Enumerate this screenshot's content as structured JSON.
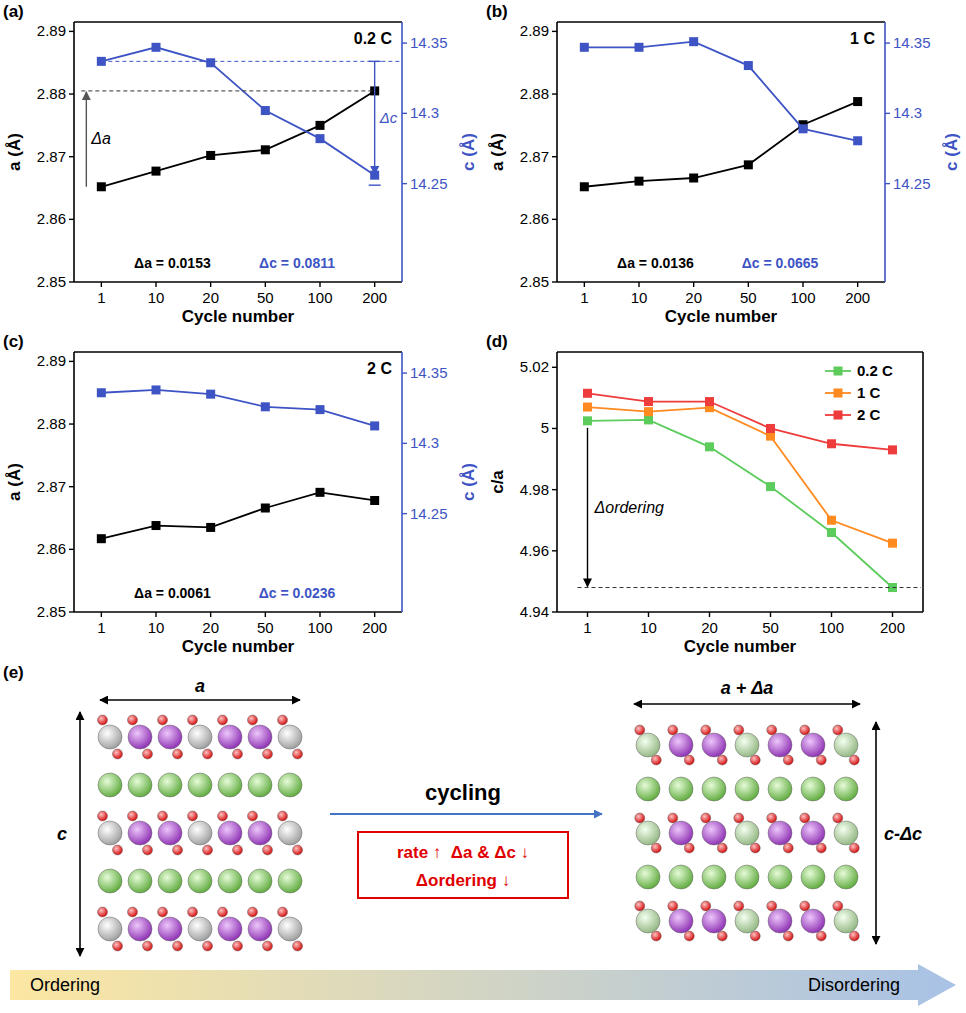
{
  "chart_data": [
    {
      "type": "line",
      "panel_label": "(a)",
      "title": "0.2 C",
      "categories": [
        "1",
        "10",
        "20",
        "50",
        "100",
        "200"
      ],
      "x_label": "Cycle number",
      "y_label": "a (Å)",
      "y2_label": "c (Å)",
      "ylim": [
        2.85,
        2.8915
      ],
      "yticks": [
        2.85,
        2.86,
        2.87,
        2.88,
        2.89
      ],
      "y2lim": [
        14.18,
        14.365
      ],
      "y2ticks": [
        14.25,
        14.3,
        14.35
      ],
      "grid": false,
      "series": [
        {
          "color": "#000000",
          "marker": "square",
          "values": [
            2.8652,
            2.8677,
            2.8702,
            2.8711,
            2.875,
            2.8805
          ]
        },
        {
          "color": "#3e54c4",
          "marker": "square",
          "axis": "y2",
          "values": [
            14.337,
            14.347,
            14.336,
            14.302,
            14.282,
            14.256
          ]
        }
      ],
      "annotations": {
        "delta_a": "Δa = 0.0153",
        "delta_c": "Δc = 0.0811",
        "arrow_a": "Δa",
        "arrow_c": "Δc"
      }
    },
    {
      "type": "line",
      "panel_label": "(b)",
      "title": "1 C",
      "categories": [
        "1",
        "10",
        "20",
        "50",
        "100",
        "200"
      ],
      "x_label": "Cycle number",
      "y_label": "a (Å)",
      "y2_label": "c (Å)",
      "ylim": [
        2.85,
        2.8915
      ],
      "yticks": [
        2.85,
        2.86,
        2.87,
        2.88,
        2.89
      ],
      "y2lim": [
        14.18,
        14.365
      ],
      "y2ticks": [
        14.25,
        14.3,
        14.35
      ],
      "grid": false,
      "series": [
        {
          "color": "#000000",
          "marker": "square",
          "values": [
            2.8652,
            2.8661,
            2.8666,
            2.8687,
            2.8751,
            2.8788
          ]
        },
        {
          "color": "#3e54c4",
          "marker": "square",
          "axis": "y2",
          "values": [
            14.347,
            14.347,
            14.351,
            14.334,
            14.289,
            14.2805
          ]
        }
      ],
      "annotations": {
        "delta_a": "Δa = 0.0136",
        "delta_c": "Δc = 0.0665"
      }
    },
    {
      "type": "line",
      "panel_label": "(c)",
      "title": "2 C",
      "categories": [
        "1",
        "10",
        "20",
        "50",
        "100",
        "200"
      ],
      "x_label": "Cycle number",
      "y_label": "a (Å)",
      "y2_label": "c (Å)",
      "ylim": [
        2.85,
        2.8915
      ],
      "yticks": [
        2.85,
        2.86,
        2.87,
        2.88,
        2.89
      ],
      "y2lim": [
        14.18,
        14.365
      ],
      "y2ticks": [
        14.25,
        14.3,
        14.35
      ],
      "grid": false,
      "series": [
        {
          "color": "#000000",
          "marker": "square",
          "values": [
            2.8617,
            2.8638,
            2.8635,
            2.8666,
            2.8691,
            2.8678
          ]
        },
        {
          "color": "#3e54c4",
          "marker": "square",
          "axis": "y2",
          "values": [
            14.336,
            14.338,
            14.335,
            14.326,
            14.324,
            14.3124
          ]
        }
      ],
      "annotations": {
        "delta_a": "Δa = 0.0061",
        "delta_c": "Δc = 0.0236"
      }
    },
    {
      "type": "line",
      "panel_label": "(d)",
      "categories": [
        "1",
        "10",
        "20",
        "50",
        "100",
        "200"
      ],
      "x_label": "Cycle number",
      "y_label": "c/a",
      "ylim": [
        4.94,
        5.025
      ],
      "yticks": [
        4.94,
        4.96,
        4.98,
        5,
        5.02
      ],
      "grid": false,
      "legend": "upper right",
      "series": [
        {
          "name": "0.2 C",
          "color": "#5ccc5c",
          "marker": "square",
          "values": [
            5.0025,
            5.0028,
            4.994,
            4.981,
            4.966,
            4.948
          ]
        },
        {
          "name": "1 C",
          "color": "#ff8a1f",
          "marker": "square",
          "values": [
            5.007,
            5.0055,
            5.0068,
            4.9975,
            4.97,
            4.9625
          ]
        },
        {
          "name": "2 C",
          "color": "#ee3b3b",
          "marker": "square",
          "values": [
            5.0115,
            5.0088,
            5.0088,
            5.0,
            4.995,
            4.993
          ]
        }
      ],
      "annotations": {
        "arrow": "Δordering"
      }
    }
  ],
  "diagram": {
    "panel_label": "(e)",
    "left": {
      "a_label": "a",
      "c_label": "c"
    },
    "right": {
      "a_label": "a + Δa",
      "c_label": "c-Δc"
    },
    "arrow_label": "cycling",
    "box_lines": [
      "rate ↑  Δa & Δc ↓",
      "Δordering ↓"
    ],
    "gradient_labels": [
      "Ordering",
      "Disordering"
    ]
  }
}
